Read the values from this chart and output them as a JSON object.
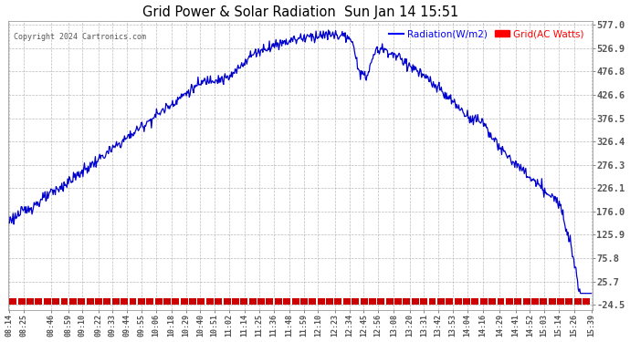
{
  "title": "Grid Power & Solar Radiation  Sun Jan 14 15:51",
  "copyright": "Copyright 2024 Cartronics.com",
  "legend_radiation": "Radiation(W/m2)",
  "legend_grid": "Grid(AC Watts)",
  "bg_color": "#ffffff",
  "plot_bg_color": "#ffffff",
  "title_color": "#000000",
  "label_color": "#000000",
  "ymin": -24.5,
  "ymax": 577.0,
  "yticks": [
    577.0,
    526.9,
    476.8,
    426.6,
    376.5,
    326.4,
    276.3,
    226.1,
    176.0,
    125.9,
    75.8,
    25.7,
    -24.5
  ],
  "xtick_labels": [
    "08:14",
    "08:25",
    "08:46",
    "08:59",
    "09:10",
    "09:22",
    "09:33",
    "09:44",
    "09:55",
    "10:06",
    "10:18",
    "10:29",
    "10:40",
    "10:51",
    "11:02",
    "11:14",
    "11:25",
    "11:36",
    "11:48",
    "11:59",
    "12:10",
    "12:23",
    "12:34",
    "12:45",
    "12:56",
    "13:08",
    "13:20",
    "13:31",
    "13:42",
    "13:53",
    "14:04",
    "14:16",
    "14:29",
    "14:41",
    "14:52",
    "15:03",
    "15:14",
    "15:26",
    "15:39"
  ],
  "grid_color": "#aaaaaa",
  "radiation_color": "#0000cc",
  "grid_ac_color": "#cc0000",
  "radiation_legend_color": "#0000ff",
  "grid_legend_color": "#ff0000"
}
